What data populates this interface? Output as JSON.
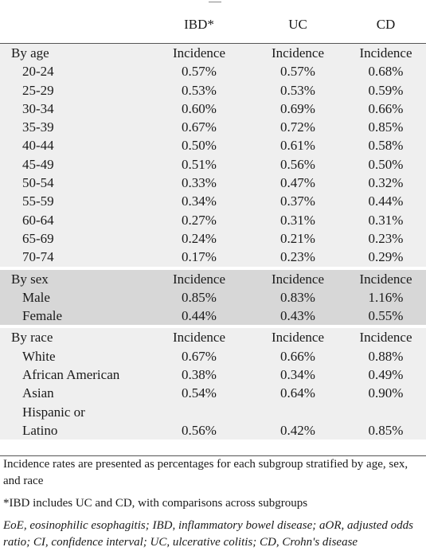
{
  "header": {
    "col1": "IBD*",
    "col2": "UC",
    "col3": "CD"
  },
  "groups": {
    "age": {
      "label": "By age",
      "metric": "Incidence",
      "rows": [
        {
          "label": "20-24",
          "ibd": "0.57%",
          "uc": "0.57%",
          "cd": "0.68%"
        },
        {
          "label": "25-29",
          "ibd": "0.53%",
          "uc": "0.53%",
          "cd": "0.59%"
        },
        {
          "label": "30-34",
          "ibd": "0.60%",
          "uc": "0.69%",
          "cd": "0.66%"
        },
        {
          "label": "35-39",
          "ibd": "0.67%",
          "uc": "0.72%",
          "cd": "0.85%"
        },
        {
          "label": "40-44",
          "ibd": "0.50%",
          "uc": "0.61%",
          "cd": "0.58%"
        },
        {
          "label": "45-49",
          "ibd": "0.51%",
          "uc": "0.56%",
          "cd": "0.50%"
        },
        {
          "label": "50-54",
          "ibd": "0.33%",
          "uc": "0.47%",
          "cd": "0.32%"
        },
        {
          "label": "55-59",
          "ibd": "0.34%",
          "uc": "0.37%",
          "cd": "0.44%"
        },
        {
          "label": "60-64",
          "ibd": "0.27%",
          "uc": "0.31%",
          "cd": "0.31%"
        },
        {
          "label": "65-69",
          "ibd": "0.24%",
          "uc": "0.21%",
          "cd": "0.23%"
        },
        {
          "label": "70-74",
          "ibd": "0.17%",
          "uc": "0.23%",
          "cd": "0.29%"
        }
      ]
    },
    "sex": {
      "label": "By sex",
      "metric": "Incidence",
      "rows": [
        {
          "label": "Male",
          "ibd": "0.85%",
          "uc": "0.83%",
          "cd": "1.16%"
        },
        {
          "label": "Female",
          "ibd": "0.44%",
          "uc": "0.43%",
          "cd": "0.55%"
        }
      ]
    },
    "race": {
      "label": "By race",
      "metric": "Incidence",
      "rows": [
        {
          "label": "White",
          "ibd": "0.67%",
          "uc": "0.66%",
          "cd": "0.88%"
        },
        {
          "label": "African American",
          "ibd": "0.38%",
          "uc": "0.34%",
          "cd": "0.49%"
        },
        {
          "label": "Asian",
          "ibd": "0.54%",
          "uc": "0.64%",
          "cd": "0.90%"
        },
        {
          "label": "Hispanic or",
          "ibd": "",
          "uc": "",
          "cd": ""
        },
        {
          "label": "Latino",
          "ibd": "0.56%",
          "uc": "0.42%",
          "cd": "0.85%"
        }
      ]
    }
  },
  "footnotes": {
    "n1": "Incidence rates are presented as percentages for each subgroup stratified by age, sex, and race",
    "n2": "*IBD includes UC and CD, with comparisons across subgroups",
    "n3": "EoE, eosinophilic esophagitis; IBD, inflammatory bowel disease; aOR, adjusted odds ratio; CI, confidence interval; UC, ulcerative colitis; CD, Crohn's disease"
  }
}
